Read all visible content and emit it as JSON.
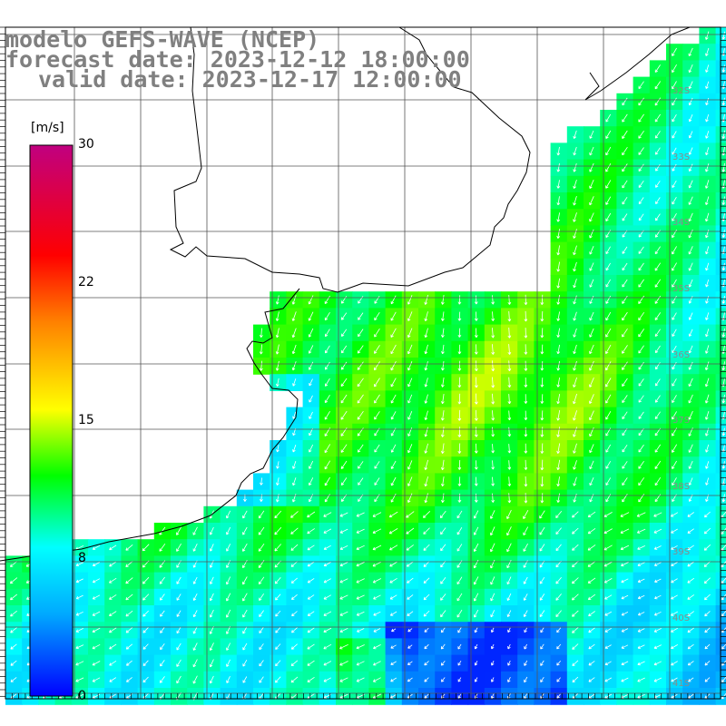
{
  "header": {
    "title": "modelo GEFS-WAVE (NCEP)",
    "forecast_date": "forecast date: 2023-12-12 18:00:00",
    "valid_date": "valid date: 2023-12-17 12:00:00"
  },
  "colorbar": {
    "unit": "[m/s]",
    "ticks": [
      "30",
      "22",
      "15",
      "8",
      "0"
    ],
    "colors": [
      "#0000ff",
      "#00aaff",
      "#00ffff",
      "#00ff00",
      "#ffff00",
      "#ff8000",
      "#ff0000",
      "#c00080"
    ]
  },
  "lat_labels": [
    "32S",
    "33S",
    "34S",
    "35S",
    "36S",
    "37S",
    "38S",
    "39S",
    "40S",
    "41S"
  ],
  "colors": {
    "land": "#ffffff",
    "grid": "#555555",
    "coast": "#000000",
    "arrows": "#ffffff",
    "header_text": "#808080"
  }
}
